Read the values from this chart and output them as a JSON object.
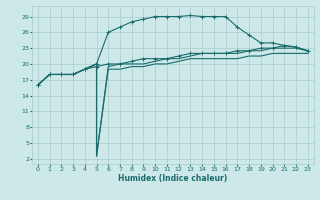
{
  "xlabel": "Humidex (Indice chaleur)",
  "background_color": "#cce8e8",
  "grid_color": "#aacccc",
  "line_color": "#1a6b6b",
  "x_ticks": [
    0,
    1,
    2,
    3,
    4,
    5,
    6,
    7,
    8,
    9,
    10,
    11,
    12,
    13,
    14,
    15,
    16,
    17,
    18,
    19,
    20,
    21,
    22,
    23
  ],
  "y_ticks": [
    2,
    5,
    8,
    11,
    14,
    17,
    20,
    23,
    26,
    29
  ],
  "xlim": [
    -0.5,
    23.5
  ],
  "ylim": [
    1,
    31
  ],
  "line1_x": [
    0,
    1,
    2,
    3,
    4,
    5,
    6,
    7,
    8,
    9,
    10,
    11,
    12,
    13,
    14,
    15,
    16,
    17,
    18,
    19,
    20,
    21,
    22,
    23
  ],
  "line1_y": [
    16,
    18,
    18,
    18,
    19,
    20,
    26,
    27,
    28,
    28.5,
    29,
    29,
    29,
    29.2,
    29,
    29,
    29,
    27,
    25.5,
    24,
    24,
    23.5,
    23.2,
    22.5
  ],
  "line2_x": [
    0,
    1,
    2,
    3,
    4,
    5,
    5,
    6,
    7,
    8,
    9,
    10,
    11,
    12,
    13,
    14,
    15,
    16,
    17,
    18,
    19,
    20,
    21,
    22,
    23
  ],
  "line2_y": [
    16,
    18,
    18,
    18,
    19,
    20,
    2.5,
    19,
    19,
    19.5,
    19.5,
    20,
    20,
    20.5,
    21,
    21,
    21,
    21,
    21,
    21.5,
    21.5,
    22,
    22,
    22,
    22
  ],
  "line3_x": [
    0,
    1,
    2,
    3,
    4,
    5,
    5,
    6,
    7,
    8,
    9,
    10,
    11,
    12,
    13,
    14,
    15,
    16,
    17,
    18,
    19,
    20,
    21,
    22,
    23
  ],
  "line3_y": [
    16,
    18,
    18,
    18,
    19,
    20,
    2.5,
    19.5,
    20,
    20,
    20,
    20.5,
    21,
    21,
    21.5,
    22,
    22,
    22,
    22,
    22.5,
    22.5,
    23,
    23,
    23,
    22.5
  ],
  "line4_x": [
    0,
    1,
    2,
    3,
    4,
    5,
    6,
    7,
    8,
    9,
    10,
    11,
    12,
    13,
    14,
    15,
    16,
    17,
    18,
    19,
    20,
    21,
    22,
    23
  ],
  "line4_y": [
    16,
    18,
    18,
    18,
    19,
    19.5,
    20,
    20,
    20.5,
    21,
    21,
    21,
    21.5,
    22,
    22,
    22,
    22,
    22.5,
    22.5,
    23,
    23,
    23.5,
    23.2,
    22.5
  ]
}
